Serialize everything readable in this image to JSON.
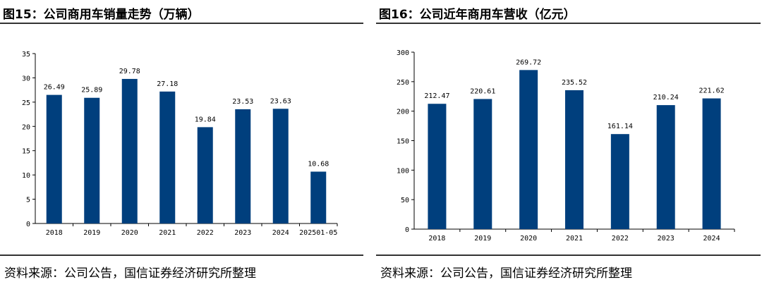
{
  "colors": {
    "bar": "#003f7d",
    "axis": "#000000",
    "rule": "#333333"
  },
  "left": {
    "title": "图15：公司商用车销量走势（万辆）",
    "source": "资料来源：公司公告，国信证券经济研究所整理"
  },
  "right": {
    "title": "图16：公司近年商用车营收（亿元）",
    "source": "资料来源：公司公告，国信证券经济研究所整理"
  },
  "chart_data": [
    {
      "type": "bar",
      "title": "图15：公司商用车销量走势（万辆）",
      "categories": [
        "2018",
        "2019",
        "2020",
        "2021",
        "2022",
        "2023",
        "2024",
        "202501-05"
      ],
      "values": [
        26.49,
        25.89,
        29.78,
        27.18,
        19.84,
        23.53,
        23.63,
        10.68
      ],
      "value_labels": [
        "26.49",
        "25.89",
        "29.78",
        "27.18",
        "19.84",
        "23.53",
        "23.63",
        "10.68"
      ],
      "yticks": [
        "0",
        "5",
        "10",
        "15",
        "20",
        "25",
        "30",
        "35"
      ],
      "ylim": [
        0,
        35
      ],
      "grid": false,
      "legend": "none"
    },
    {
      "type": "bar",
      "title": "图16：公司近年商用车营收（亿元）",
      "categories": [
        "2018",
        "2019",
        "2020",
        "2021",
        "2022",
        "2023",
        "2024"
      ],
      "values": [
        212.47,
        220.61,
        269.72,
        235.52,
        161.14,
        210.24,
        221.62
      ],
      "value_labels": [
        "212.47",
        "220.61",
        "269.72",
        "235.52",
        "161.14",
        "210.24",
        "221.62"
      ],
      "yticks": [
        "0",
        "50",
        "100",
        "150",
        "200",
        "250",
        "300"
      ],
      "ylim": [
        0,
        300
      ],
      "grid": false,
      "legend": "none"
    }
  ]
}
